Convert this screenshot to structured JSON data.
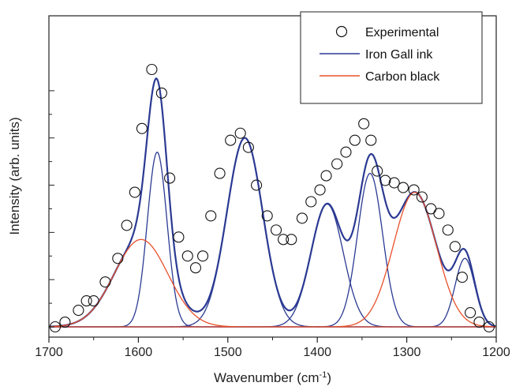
{
  "chart_data": {
    "type": "line",
    "title": "",
    "xlabel": "Wavenumber (cm",
    "xlabel_sup": "-1",
    "xlabel_suffix": ")",
    "ylabel": "Intensity (arb. units)",
    "xlim": [
      1700,
      1200
    ],
    "x_reversed": true,
    "ylim": [
      0,
      1.09
    ],
    "x_ticks": [
      1700,
      1600,
      1500,
      1400,
      1300,
      1200
    ],
    "x_tick_labels": [
      "1700",
      "1600",
      "1500",
      "1400",
      "1300",
      "1200"
    ],
    "y_tick_labels_shown": false,
    "y_minor_tick_step": 0.1,
    "grid": false,
    "legend_position": "top-right",
    "legend": [
      "Experimental",
      "Iron Gall ink",
      "Carbon black"
    ],
    "colors": {
      "experimental": "#111111",
      "iron_gall": "#2b3a93",
      "carbon": "#e8502a"
    },
    "experimental": {
      "x": [
        1693,
        1682,
        1667,
        1658,
        1650,
        1637,
        1623,
        1613,
        1604,
        1596,
        1585,
        1574,
        1565,
        1555,
        1545,
        1536,
        1528,
        1519,
        1509,
        1497,
        1486,
        1477,
        1468,
        1456,
        1446,
        1438,
        1429,
        1417,
        1407,
        1397,
        1390,
        1378,
        1368,
        1358,
        1348,
        1340,
        1333,
        1324,
        1314,
        1304,
        1292,
        1283,
        1273,
        1264,
        1254,
        1246,
        1238,
        1229,
        1219,
        1208
      ],
      "y": [
        0.0,
        0.02,
        0.07,
        0.11,
        0.11,
        0.19,
        0.29,
        0.43,
        0.57,
        0.84,
        1.09,
        0.99,
        0.63,
        0.38,
        0.3,
        0.25,
        0.3,
        0.47,
        0.65,
        0.79,
        0.82,
        0.76,
        0.6,
        0.47,
        0.41,
        0.37,
        0.37,
        0.46,
        0.53,
        0.58,
        0.64,
        0.69,
        0.74,
        0.79,
        0.86,
        0.79,
        0.66,
        0.62,
        0.61,
        0.59,
        0.58,
        0.55,
        0.5,
        0.48,
        0.41,
        0.34,
        0.21,
        0.06,
        0.02,
        0.0
      ]
    },
    "components": [
      {
        "group": "iron_gall",
        "center": 1579,
        "amplitude": 0.74,
        "width": 11
      },
      {
        "group": "iron_gall",
        "center": 1481,
        "amplitude": 0.8,
        "width": 20
      },
      {
        "group": "iron_gall",
        "center": 1389,
        "amplitude": 0.52,
        "width": 18
      },
      {
        "group": "iron_gall",
        "center": 1341,
        "amplitude": 0.65,
        "width": 14
      },
      {
        "group": "iron_gall",
        "center": 1235,
        "amplitude": 0.29,
        "width": 11
      },
      {
        "group": "carbon",
        "center": 1597,
        "amplitude": 0.37,
        "width": 30
      },
      {
        "group": "carbon",
        "center": 1291,
        "amplitude": 0.57,
        "width": 24
      }
    ]
  }
}
